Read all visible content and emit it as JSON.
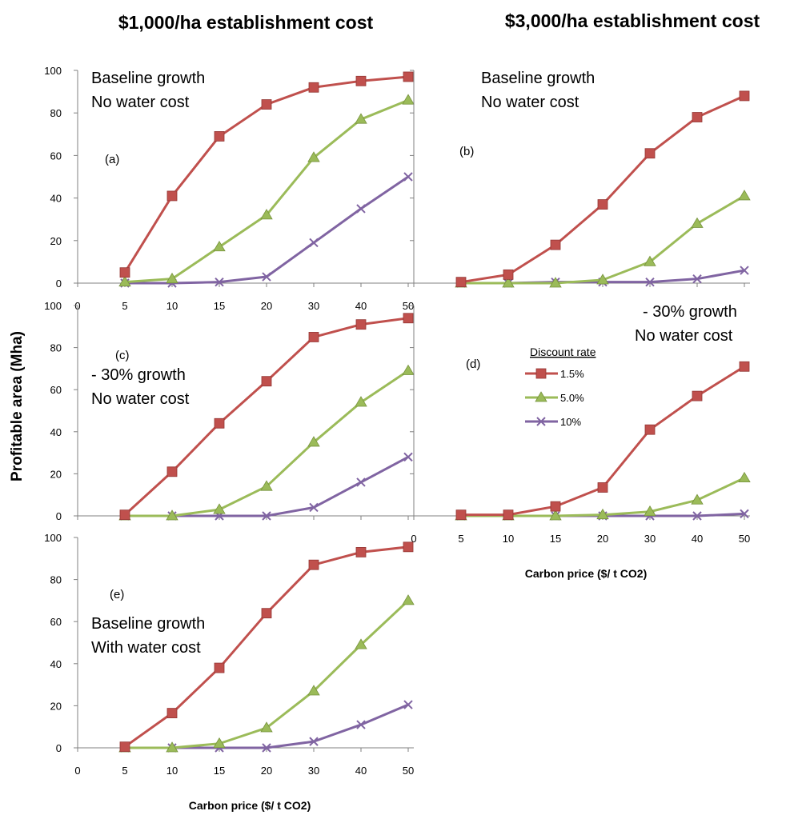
{
  "headings": {
    "left": "$1,000/ha establishment cost",
    "right": "$3,000/ha establishment cost"
  },
  "y_axis_title": "Profitable area (Mha)",
  "legend": {
    "title": "Discount rate",
    "entries": [
      "1.5%",
      "5.0%",
      "10%"
    ]
  },
  "colors": {
    "s15": "#C0504D",
    "s50": "#9BBB59",
    "s10": "#8064A2"
  },
  "chart_data": [
    {
      "id": "a",
      "type": "line",
      "panel_label": "(a)",
      "notes": [
        "Baseline growth",
        "No water cost"
      ],
      "x_category_ticks": [
        "0",
        "5",
        "10",
        "15",
        "20",
        "30",
        "40",
        "50"
      ],
      "x": [
        5,
        10,
        15,
        20,
        30,
        40,
        50
      ],
      "xlabel": "",
      "ylim": [
        0,
        100
      ],
      "y_ticks": [
        0,
        20,
        40,
        60,
        80,
        100
      ],
      "series": [
        {
          "name": "1.5%",
          "values": [
            5,
            41,
            69,
            84,
            92,
            95,
            97
          ]
        },
        {
          "name": "5.0%",
          "values": [
            0.5,
            2,
            17,
            32,
            59,
            77,
            86
          ]
        },
        {
          "name": "10%",
          "values": [
            0,
            0,
            0.5,
            3,
            19,
            35,
            50
          ]
        }
      ]
    },
    {
      "id": "b",
      "type": "line",
      "panel_label": "(b)",
      "notes": [
        "Baseline growth",
        "No water cost"
      ],
      "x_category_ticks": [],
      "x": [
        5,
        10,
        15,
        20,
        30,
        40,
        50
      ],
      "xlabel": "",
      "ylim": [
        0,
        100
      ],
      "y_ticks": [],
      "series": [
        {
          "name": "1.5%",
          "values": [
            0.5,
            4,
            18,
            37,
            61,
            78,
            88
          ]
        },
        {
          "name": "5.0%",
          "values": [
            0,
            0,
            0,
            1.5,
            10,
            28,
            41
          ]
        },
        {
          "name": "10%",
          "values": [
            0,
            0,
            0.5,
            0.5,
            0.5,
            2,
            6
          ]
        }
      ]
    },
    {
      "id": "c",
      "type": "line",
      "panel_label": "(c)",
      "notes": [
        "- 30% growth",
        "No water cost"
      ],
      "x_category_ticks": [],
      "x": [
        5,
        10,
        15,
        20,
        30,
        40,
        50
      ],
      "xlabel": "",
      "ylim": [
        0,
        100
      ],
      "y_ticks": [
        0,
        20,
        40,
        60,
        80,
        100
      ],
      "series": [
        {
          "name": "1.5%",
          "values": [
            0.5,
            21,
            44,
            64,
            85,
            91,
            94
          ]
        },
        {
          "name": "5.0%",
          "values": [
            0,
            0,
            3,
            14,
            35,
            54,
            69
          ]
        },
        {
          "name": "10%",
          "values": [
            0,
            0,
            0,
            0,
            4,
            16,
            28
          ]
        }
      ]
    },
    {
      "id": "d",
      "type": "line",
      "panel_label": "(d)",
      "notes": [
        "- 30% growth",
        "No water cost"
      ],
      "x_category_ticks": [
        "0",
        "5",
        "10",
        "15",
        "20",
        "30",
        "40",
        "50"
      ],
      "x": [
        5,
        10,
        15,
        20,
        30,
        40,
        50
      ],
      "xlabel": "Carbon price ($/ t CO2)",
      "ylim": [
        0,
        100
      ],
      "y_ticks": [],
      "series": [
        {
          "name": "1.5%",
          "values": [
            0.5,
            0.5,
            4.5,
            13.5,
            41,
            57,
            71
          ]
        },
        {
          "name": "5.0%",
          "values": [
            0,
            0,
            0,
            0.5,
            2,
            7.5,
            18
          ]
        },
        {
          "name": "10%",
          "values": [
            0,
            0,
            0,
            0,
            0,
            0,
            1
          ]
        }
      ]
    },
    {
      "id": "e",
      "type": "line",
      "panel_label": "(e)",
      "notes": [
        "Baseline growth",
        "With water cost"
      ],
      "x_category_ticks": [
        "0",
        "5",
        "10",
        "15",
        "20",
        "30",
        "40",
        "50"
      ],
      "x": [
        5,
        10,
        15,
        20,
        30,
        40,
        50
      ],
      "xlabel": "Carbon price ($/ t CO2)",
      "ylim": [
        0,
        100
      ],
      "y_ticks": [
        0,
        20,
        40,
        60,
        80,
        100
      ],
      "series": [
        {
          "name": "1.5%",
          "values": [
            0.5,
            16.5,
            38,
            64,
            87,
            93,
            95.5
          ]
        },
        {
          "name": "5.0%",
          "values": [
            0,
            0,
            2,
            9.5,
            27,
            49,
            70
          ]
        },
        {
          "name": "10%",
          "values": [
            0,
            0,
            0,
            0,
            3,
            11,
            20.5
          ]
        }
      ]
    }
  ]
}
